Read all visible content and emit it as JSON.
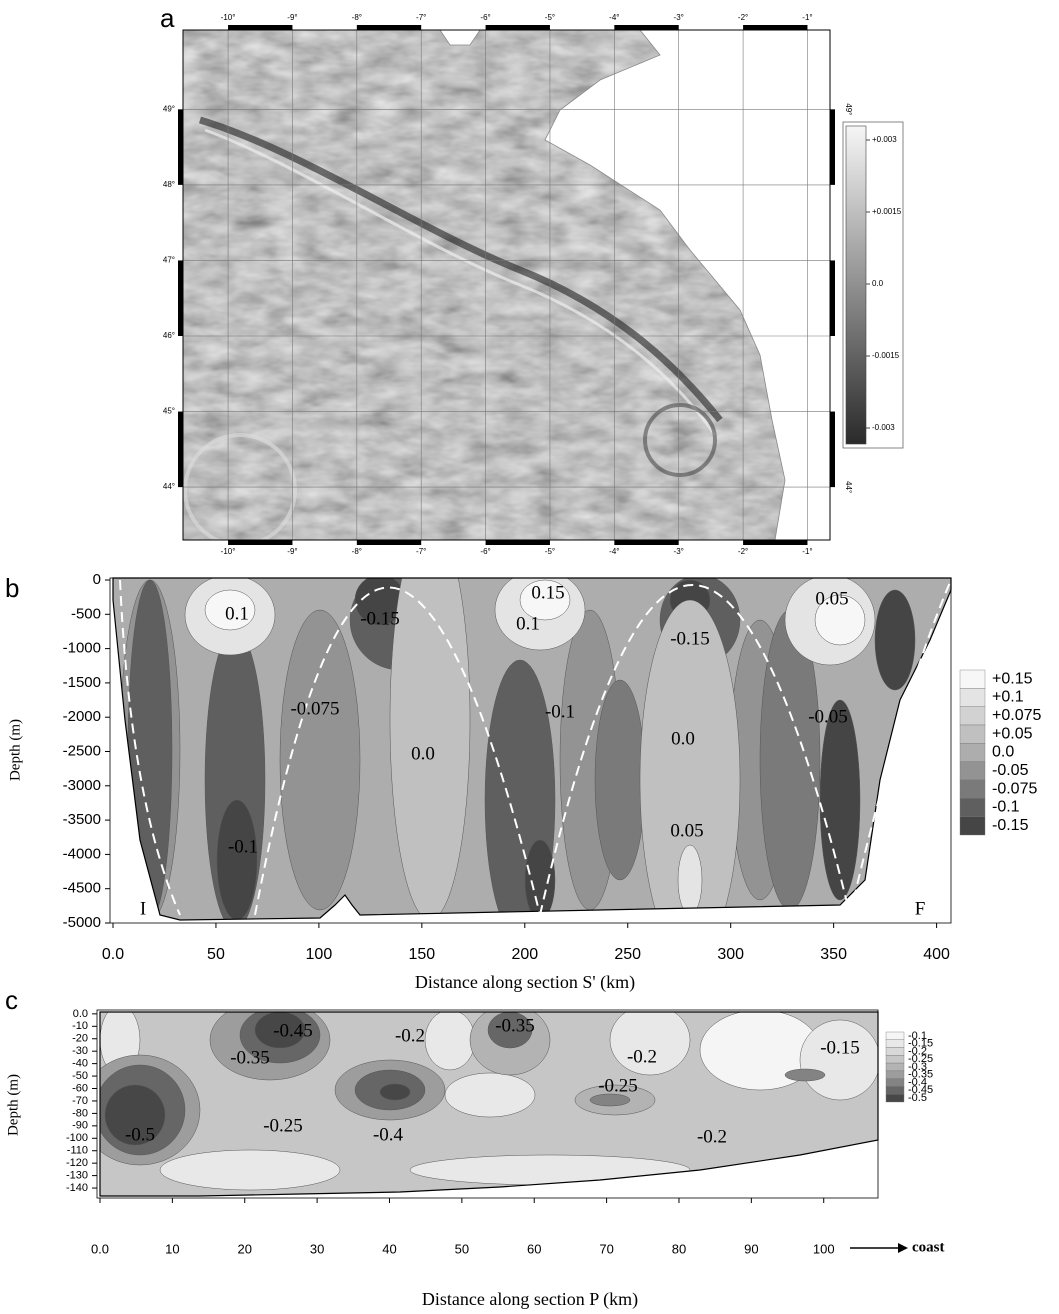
{
  "chart_data": [
    {
      "type": "map",
      "panel_label": "a",
      "xlim": [
        -10.7,
        -0.65
      ],
      "ylim": [
        43.3,
        50.05
      ],
      "xticks": [
        {
          "value": -10,
          "label": "-10°"
        },
        {
          "value": -9,
          "label": "-9°"
        },
        {
          "value": -8,
          "label": "-8°"
        },
        {
          "value": -7,
          "label": "-7°"
        },
        {
          "value": -6,
          "label": "-6°"
        },
        {
          "value": -5,
          "label": "-5°"
        },
        {
          "value": -4,
          "label": "-4°"
        },
        {
          "value": -3,
          "label": "-3°"
        },
        {
          "value": -2,
          "label": "-2°"
        },
        {
          "value": -1,
          "label": "-1°"
        }
      ],
      "yticks": [
        {
          "value": 44,
          "label": "44°"
        },
        {
          "value": 45,
          "label": "45°"
        },
        {
          "value": 46,
          "label": "46°"
        },
        {
          "value": 47,
          "label": "47°"
        },
        {
          "value": 48,
          "label": "48°"
        },
        {
          "value": 49,
          "label": "49°"
        }
      ],
      "colorbar": {
        "levels": [
          {
            "value": 0.003,
            "label": "+0.003"
          },
          {
            "value": 0.0015,
            "label": "+0.0015"
          },
          {
            "value": 0,
            "label": "0.0"
          },
          {
            "value": -0.0015,
            "label": "-0.0015"
          },
          {
            "value": -0.003,
            "label": "-0.003"
          }
        ],
        "colors": [
          "#f6f6f6",
          "#2a2a2a"
        ]
      }
    },
    {
      "type": "contour",
      "panel_label": "b",
      "y_label": "Depth (m)",
      "x_label": "Distance along section S' (km)",
      "xlim": [
        0,
        407
      ],
      "ylim": [
        -5000,
        0
      ],
      "xticks": [
        {
          "value": 0,
          "label": "0.0"
        },
        50,
        100,
        150,
        200,
        250,
        300,
        350,
        400
      ],
      "yticks": [
        0,
        -500,
        -1000,
        -1500,
        -2000,
        -2500,
        -3000,
        -3500,
        -4000,
        -4500,
        -5000
      ],
      "colorbar": {
        "levels": [
          {
            "value": 0.15,
            "label": "+0.15"
          },
          {
            "value": 0.1,
            "label": "+0.1"
          },
          {
            "value": 0.075,
            "label": "+0.075"
          },
          {
            "value": 0.05,
            "label": "+0.05"
          },
          {
            "value": 0,
            "label": "0.0"
          },
          {
            "value": -0.05,
            "label": "-0.05"
          },
          {
            "value": -0.075,
            "label": "-0.075"
          },
          {
            "value": -0.1,
            "label": "-0.1"
          },
          {
            "value": -0.15,
            "label": "-0.15"
          }
        ],
        "colors": [
          "#f7f7f7",
          "#e4e4e4",
          "#d2d2d2",
          "#c0c0c0",
          "#adadad",
          "#939393",
          "#7a7a7a",
          "#5f5f5f",
          "#454545"
        ]
      },
      "annotations": [
        "0.1",
        "-0.15",
        "0.15",
        "0.1",
        "-0.15",
        "0.05",
        "-0.075",
        "-0.1",
        "0.0",
        "0.0",
        "-0.05",
        "-0.1",
        "0.05",
        "I",
        "F"
      ]
    },
    {
      "type": "contour",
      "panel_label": "c",
      "y_label": "Depth (m)",
      "x_label": "Distance along section P (km)",
      "arrow_label": "coast",
      "xlim": [
        0,
        107.5
      ],
      "ylim": [
        -148,
        1.5
      ],
      "xticks": [
        {
          "value": 0,
          "label": "0.0"
        },
        10,
        20,
        30,
        40,
        50,
        60,
        70,
        80,
        90,
        100
      ],
      "yticks": [
        {
          "value": 0,
          "label": "0.0"
        },
        -10,
        -20,
        -30,
        -40,
        -50,
        -60,
        -70,
        -80,
        -90,
        -100,
        -110,
        -120,
        -130,
        -140
      ],
      "colorbar": {
        "levels": [
          {
            "value": -0.1,
            "label": "-0.1"
          },
          {
            "value": -0.15,
            "label": "-0.15"
          },
          {
            "value": -0.2,
            "label": "-0.2"
          },
          {
            "value": -0.25,
            "label": "-0.25"
          },
          {
            "value": -0.3,
            "label": "-0.3"
          },
          {
            "value": -0.35,
            "label": "-0.35"
          },
          {
            "value": -0.4,
            "label": "-0.4"
          },
          {
            "value": -0.45,
            "label": "-0.45"
          },
          {
            "value": -0.5,
            "label": "-0.5"
          }
        ],
        "colors": [
          "#f5f5f5",
          "#e8e8e8",
          "#d8d8d8",
          "#c6c6c6",
          "#b3b3b3",
          "#9d9d9d",
          "#838383",
          "#666666",
          "#474747"
        ]
      },
      "annotations": [
        "-0.45",
        "-0.2",
        "-0.35",
        "-0.35",
        "-0.2",
        "-0.15",
        "-0.25",
        "-0.25",
        "-0.5",
        "-0.4",
        "-0.2"
      ]
    }
  ]
}
